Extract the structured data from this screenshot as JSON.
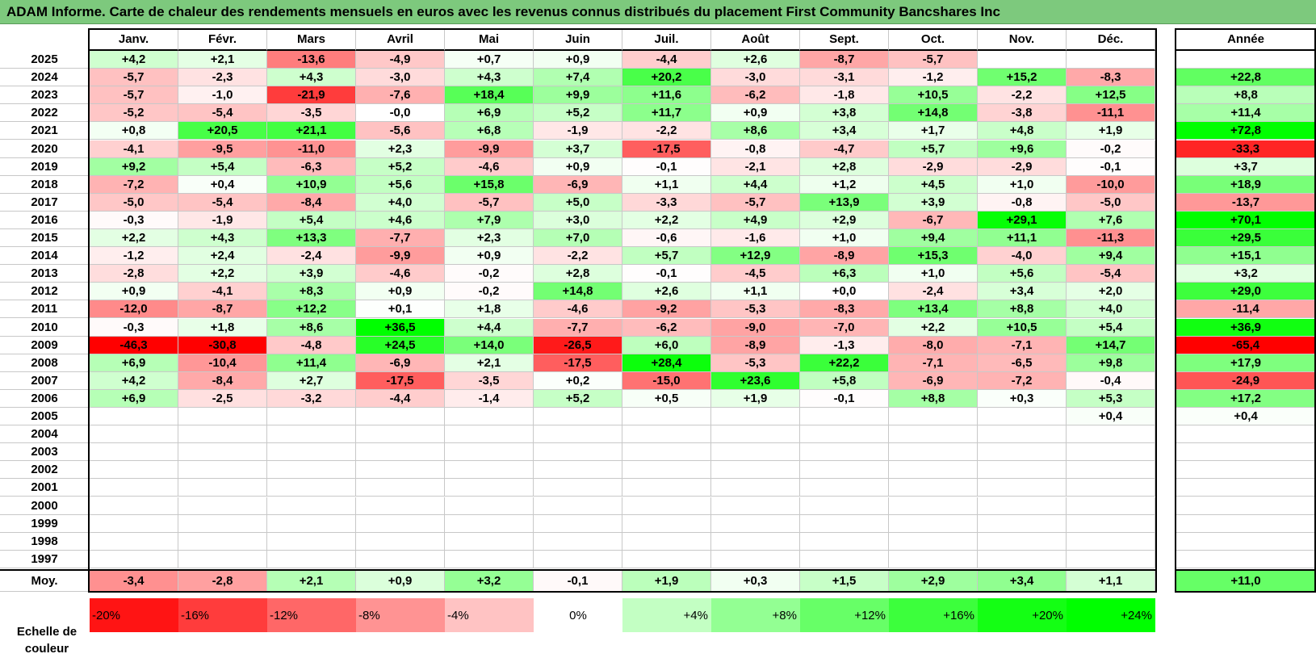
{
  "title": "ADAM Informe. Carte de chaleur des rendements mensuels en euros avec les revenus connus distribués du placement First Community Bancshares Inc",
  "chart_data": {
    "type": "heatmap",
    "months": [
      "Janv.",
      "Févr.",
      "Mars",
      "Avril",
      "Mai",
      "Juin",
      "Juil.",
      "Août",
      "Sept.",
      "Oct.",
      "Nov.",
      "Déc."
    ],
    "year_col_label": "Année",
    "avg_label": "Moy.",
    "scale_label": "Echelle de couleur",
    "rows": [
      {
        "year": "2025",
        "values": [
          "+4,2",
          "+2,1",
          "-13,6",
          "-4,9",
          "+0,7",
          "+0,9",
          "-4,4",
          "+2,6",
          "-8,7",
          "-5,7",
          "",
          ""
        ],
        "annual": ""
      },
      {
        "year": "2024",
        "values": [
          "-5,7",
          "-2,3",
          "+4,3",
          "-3,0",
          "+4,3",
          "+7,4",
          "+20,2",
          "-3,0",
          "-3,1",
          "-1,2",
          "+15,2",
          "-8,3"
        ],
        "annual": "+22,8"
      },
      {
        "year": "2023",
        "values": [
          "-5,7",
          "-1,0",
          "-21,9",
          "-7,6",
          "+18,4",
          "+9,9",
          "+11,6",
          "-6,2",
          "-1,8",
          "+10,5",
          "-2,2",
          "+12,5"
        ],
        "annual": "+8,8"
      },
      {
        "year": "2022",
        "values": [
          "-5,2",
          "-5,4",
          "-3,5",
          "-0,0",
          "+6,9",
          "+5,2",
          "+11,7",
          "+0,9",
          "+3,8",
          "+14,8",
          "-3,8",
          "-11,1"
        ],
        "annual": "+11,4"
      },
      {
        "year": "2021",
        "values": [
          "+0,8",
          "+20,5",
          "+21,1",
          "-5,6",
          "+6,8",
          "-1,9",
          "-2,2",
          "+8,6",
          "+3,4",
          "+1,7",
          "+4,8",
          "+1,9"
        ],
        "annual": "+72,8"
      },
      {
        "year": "2020",
        "values": [
          "-4,1",
          "-9,5",
          "-11,0",
          "+2,3",
          "-9,9",
          "+3,7",
          "-17,5",
          "-0,8",
          "-4,7",
          "+5,7",
          "+9,6",
          "-0,2"
        ],
        "annual": "-33,3"
      },
      {
        "year": "2019",
        "values": [
          "+9,2",
          "+5,4",
          "-6,3",
          "+5,2",
          "-4,6",
          "+0,9",
          "-0,1",
          "-2,1",
          "+2,8",
          "-2,9",
          "-2,9",
          "-0,1"
        ],
        "annual": "+3,7"
      },
      {
        "year": "2018",
        "values": [
          "-7,2",
          "+0,4",
          "+10,9",
          "+5,6",
          "+15,8",
          "-6,9",
          "+1,1",
          "+4,4",
          "+1,2",
          "+4,5",
          "+1,0",
          "-10,0"
        ],
        "annual": "+18,9"
      },
      {
        "year": "2017",
        "values": [
          "-5,0",
          "-5,4",
          "-8,4",
          "+4,0",
          "-5,7",
          "+5,0",
          "-3,3",
          "-5,7",
          "+13,9",
          "+3,9",
          "-0,8",
          "-5,0"
        ],
        "annual": "-13,7"
      },
      {
        "year": "2016",
        "values": [
          "-0,3",
          "-1,9",
          "+5,4",
          "+4,6",
          "+7,9",
          "+3,0",
          "+2,2",
          "+4,9",
          "+2,9",
          "-6,7",
          "+29,1",
          "+7,6"
        ],
        "annual": "+70,1"
      },
      {
        "year": "2015",
        "values": [
          "+2,2",
          "+4,3",
          "+13,3",
          "-7,7",
          "+2,3",
          "+7,0",
          "-0,6",
          "-1,6",
          "+1,0",
          "+9,4",
          "+11,1",
          "-11,3"
        ],
        "annual": "+29,5"
      },
      {
        "year": "2014",
        "values": [
          "-1,2",
          "+2,4",
          "-2,4",
          "-9,9",
          "+0,9",
          "-2,2",
          "+5,7",
          "+12,9",
          "-8,9",
          "+15,3",
          "-4,0",
          "+9,4"
        ],
        "annual": "+15,1"
      },
      {
        "year": "2013",
        "values": [
          "-2,8",
          "+2,2",
          "+3,9",
          "-4,6",
          "-0,2",
          "+2,8",
          "-0,1",
          "-4,5",
          "+6,3",
          "+1,0",
          "+5,6",
          "-5,4"
        ],
        "annual": "+3,2"
      },
      {
        "year": "2012",
        "values": [
          "+0,9",
          "-4,1",
          "+8,3",
          "+0,9",
          "-0,2",
          "+14,8",
          "+2,6",
          "+1,1",
          "+0,0",
          "-2,4",
          "+3,4",
          "+2,0"
        ],
        "annual": "+29,0"
      },
      {
        "year": "2011",
        "values": [
          "-12,0",
          "-8,7",
          "+12,2",
          "+0,1",
          "+1,8",
          "-4,6",
          "-9,2",
          "-5,3",
          "-8,3",
          "+13,4",
          "+8,8",
          "+4,0"
        ],
        "annual": "-11,4"
      },
      {
        "year": "2010",
        "values": [
          "-0,3",
          "+1,8",
          "+8,6",
          "+36,5",
          "+4,4",
          "-7,7",
          "-6,2",
          "-9,0",
          "-7,0",
          "+2,2",
          "+10,5",
          "+5,4"
        ],
        "annual": "+36,9"
      },
      {
        "year": "2009",
        "values": [
          "-46,3",
          "-30,8",
          "-4,8",
          "+24,5",
          "+14,0",
          "-26,5",
          "+6,0",
          "-8,9",
          "-1,3",
          "-8,0",
          "-7,1",
          "+14,7"
        ],
        "annual": "-65,4"
      },
      {
        "year": "2008",
        "values": [
          "+6,9",
          "-10,4",
          "+11,4",
          "-6,9",
          "+2,1",
          "-17,5",
          "+28,4",
          "-5,3",
          "+22,2",
          "-7,1",
          "-6,5",
          "+9,8"
        ],
        "annual": "+17,9"
      },
      {
        "year": "2007",
        "values": [
          "+4,2",
          "-8,4",
          "+2,7",
          "-17,5",
          "-3,5",
          "+0,2",
          "-15,0",
          "+23,6",
          "+5,8",
          "-6,9",
          "-7,2",
          "-0,4"
        ],
        "annual": "-24,9"
      },
      {
        "year": "2006",
        "values": [
          "+6,9",
          "-2,5",
          "-3,2",
          "-4,4",
          "-1,4",
          "+5,2",
          "+0,5",
          "+1,9",
          "-0,1",
          "+8,8",
          "+0,3",
          "+5,3"
        ],
        "annual": "+17,2"
      },
      {
        "year": "2005",
        "values": [
          "",
          "",
          "",
          "",
          "",
          "",
          "",
          "",
          "",
          "",
          "",
          "+0,4"
        ],
        "annual": "+0,4"
      },
      {
        "year": "2004",
        "values": [
          "",
          "",
          "",
          "",
          "",
          "",
          "",
          "",
          "",
          "",
          "",
          ""
        ],
        "annual": ""
      },
      {
        "year": "2003",
        "values": [
          "",
          "",
          "",
          "",
          "",
          "",
          "",
          "",
          "",
          "",
          "",
          ""
        ],
        "annual": ""
      },
      {
        "year": "2002",
        "values": [
          "",
          "",
          "",
          "",
          "",
          "",
          "",
          "",
          "",
          "",
          "",
          ""
        ],
        "annual": ""
      },
      {
        "year": "2001",
        "values": [
          "",
          "",
          "",
          "",
          "",
          "",
          "",
          "",
          "",
          "",
          "",
          ""
        ],
        "annual": ""
      },
      {
        "year": "2000",
        "values": [
          "",
          "",
          "",
          "",
          "",
          "",
          "",
          "",
          "",
          "",
          "",
          ""
        ],
        "annual": ""
      },
      {
        "year": "1999",
        "values": [
          "",
          "",
          "",
          "",
          "",
          "",
          "",
          "",
          "",
          "",
          "",
          ""
        ],
        "annual": ""
      },
      {
        "year": "1998",
        "values": [
          "",
          "",
          "",
          "",
          "",
          "",
          "",
          "",
          "",
          "",
          "",
          ""
        ],
        "annual": ""
      },
      {
        "year": "1997",
        "values": [
          "",
          "",
          "",
          "",
          "",
          "",
          "",
          "",
          "",
          "",
          "",
          ""
        ],
        "annual": ""
      }
    ],
    "averages": [
      "-3,4",
      "-2,8",
      "+2,1",
      "+0,9",
      "+3,2",
      "-0,1",
      "+1,9",
      "+0,3",
      "+1,5",
      "+2,9",
      "+3,4",
      "+1,1"
    ],
    "average_annual": "+11,0",
    "scale": [
      "-20%",
      "-16%",
      "-12%",
      "-8%",
      "-4%",
      "0%",
      "+4%",
      "+8%",
      "+12%",
      "+16%",
      "+20%",
      "+24%"
    ],
    "colors": {
      "negative_max": "#ff0000",
      "neutral": "#ffffff",
      "positive_max": "#00ff00",
      "title_bg": "#7dc97d"
    }
  }
}
